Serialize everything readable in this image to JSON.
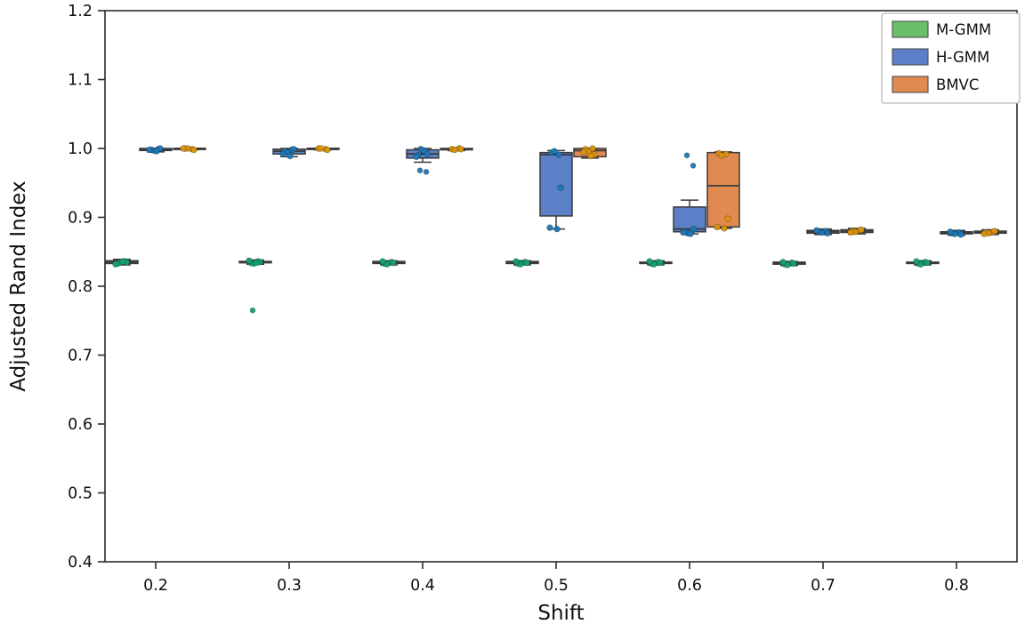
{
  "figure": {
    "title": "",
    "xlabel": "Shift",
    "ylabel": "Adjusted Rand Index"
  },
  "chart_data": {
    "type": "boxplot",
    "title": "",
    "xlabel": "Shift",
    "ylabel": "Adjusted Rand Index",
    "ylim": [
      0.4,
      1.2
    ],
    "yticks": [
      0.4,
      0.5,
      0.6,
      0.7,
      0.8,
      0.9,
      1.0,
      1.1,
      1.2
    ],
    "ytick_labels": [
      "0.4",
      "0.5",
      "0.6",
      "0.7",
      "0.8",
      "0.9",
      "1.0",
      "1.1",
      "1.2"
    ],
    "categories": [
      "0.2",
      "0.3",
      "0.4",
      "0.5",
      "0.6",
      "0.7",
      "0.8"
    ],
    "grid": false,
    "legend_position": "upper right",
    "frame": true,
    "edge_color": "#3a3a3a",
    "series": [
      {
        "name": "M-GMM",
        "box_color": "#6abf69",
        "point_color": "#16a06f",
        "boxes": [
          {
            "lo": 0.831,
            "q1": 0.833,
            "med": 0.835,
            "q3": 0.837,
            "hi": 0.839,
            "fliers": [],
            "points": [
              0.833,
              0.836,
              0.834,
              0.835,
              0.832,
              0.836
            ]
          },
          {
            "lo": 0.832,
            "q1": 0.834,
            "med": 0.835,
            "q3": 0.836,
            "hi": 0.838,
            "fliers": [
              0.765
            ],
            "points": [
              0.834,
              0.836,
              0.833,
              0.835,
              0.837,
              0.834
            ]
          },
          {
            "lo": 0.831,
            "q1": 0.833,
            "med": 0.834,
            "q3": 0.836,
            "hi": 0.837,
            "fliers": [],
            "points": [
              0.833,
              0.835,
              0.832,
              0.834,
              0.836
            ]
          },
          {
            "lo": 0.831,
            "q1": 0.833,
            "med": 0.834,
            "q3": 0.836,
            "hi": 0.837,
            "fliers": [],
            "points": [
              0.833,
              0.835,
              0.832,
              0.834,
              0.836
            ]
          },
          {
            "lo": 0.831,
            "q1": 0.833,
            "med": 0.834,
            "q3": 0.835,
            "hi": 0.837,
            "fliers": [],
            "points": [
              0.833,
              0.835,
              0.832,
              0.834,
              0.836
            ]
          },
          {
            "lo": 0.83,
            "q1": 0.832,
            "med": 0.833,
            "q3": 0.835,
            "hi": 0.836,
            "fliers": [],
            "points": [
              0.832,
              0.834,
              0.831,
              0.833,
              0.835
            ]
          },
          {
            "lo": 0.831,
            "q1": 0.833,
            "med": 0.834,
            "q3": 0.835,
            "hi": 0.837,
            "fliers": [],
            "points": [
              0.833,
              0.835,
              0.832,
              0.834,
              0.836
            ]
          }
        ]
      },
      {
        "name": "H-GMM",
        "box_color": "#5b80c7",
        "point_color": "#1f77b4",
        "boxes": [
          {
            "lo": 0.995,
            "q1": 0.997,
            "med": 0.998,
            "q3": 1.0,
            "hi": 1.0,
            "fliers": [],
            "points": [
              0.998,
              0.999,
              0.997,
              1.0,
              0.998,
              0.996
            ]
          },
          {
            "lo": 0.988,
            "q1": 0.992,
            "med": 0.996,
            "q3": 0.999,
            "hi": 1.0,
            "fliers": [],
            "points": [
              0.996,
              0.998,
              0.994,
              0.999,
              0.992,
              0.989
            ]
          },
          {
            "lo": 0.98,
            "q1": 0.986,
            "med": 0.992,
            "q3": 0.998,
            "hi": 1.0,
            "fliers": [
              0.968,
              0.966
            ],
            "points": [
              0.99,
              0.996,
              0.999,
              0.992,
              0.988,
              0.997
            ]
          },
          {
            "lo": 0.883,
            "q1": 0.902,
            "med": 0.991,
            "q3": 0.994,
            "hi": 0.997,
            "fliers": [],
            "points": [
              0.994,
              0.991,
              0.996,
              0.943,
              0.885,
              0.883
            ]
          },
          {
            "lo": 0.876,
            "q1": 0.879,
            "med": 0.883,
            "q3": 0.915,
            "hi": 0.925,
            "fliers": [
              0.99,
              0.975
            ],
            "points": [
              0.879,
              0.881,
              0.877,
              0.883,
              0.878,
              0.876
            ]
          },
          {
            "lo": 0.875,
            "q1": 0.877,
            "med": 0.879,
            "q3": 0.881,
            "hi": 0.883,
            "fliers": [],
            "points": [
              0.879,
              0.88,
              0.878,
              0.877,
              0.881
            ]
          },
          {
            "lo": 0.874,
            "q1": 0.876,
            "med": 0.877,
            "q3": 0.879,
            "hi": 0.881,
            "fliers": [],
            "points": [
              0.877,
              0.878,
              0.876,
              0.875,
              0.879
            ]
          }
        ]
      },
      {
        "name": "BMVC",
        "box_color": "#e08a52",
        "point_color": "#d9940e",
        "boxes": [
          {
            "lo": 0.998,
            "q1": 0.999,
            "med": 1.0,
            "q3": 1.0,
            "hi": 1.0,
            "fliers": [],
            "points": [
              1.0,
              0.999,
              1.0,
              0.998,
              1.0
            ]
          },
          {
            "lo": 0.998,
            "q1": 0.999,
            "med": 1.0,
            "q3": 1.0,
            "hi": 1.0,
            "fliers": [],
            "points": [
              1.0,
              0.999,
              1.0,
              0.998
            ]
          },
          {
            "lo": 0.997,
            "q1": 0.998,
            "med": 0.999,
            "q3": 1.0,
            "hi": 1.0,
            "fliers": [],
            "points": [
              0.999,
              1.0,
              0.998,
              0.999
            ]
          },
          {
            "lo": 0.986,
            "q1": 0.988,
            "med": 0.997,
            "q3": 1.0,
            "hi": 1.0,
            "fliers": [],
            "points": [
              0.999,
              1.0,
              0.996,
              0.991,
              0.995,
              0.989
            ]
          },
          {
            "lo": 0.884,
            "q1": 0.886,
            "med": 0.946,
            "q3": 0.994,
            "hi": 0.995,
            "fliers": [],
            "points": [
              0.993,
              0.992,
              0.99,
              0.898,
              0.886,
              0.884
            ]
          },
          {
            "lo": 0.876,
            "q1": 0.878,
            "med": 0.88,
            "q3": 0.882,
            "hi": 0.884,
            "fliers": [],
            "points": [
              0.88,
              0.881,
              0.879,
              0.882,
              0.878
            ]
          },
          {
            "lo": 0.875,
            "q1": 0.877,
            "med": 0.878,
            "q3": 0.88,
            "hi": 0.882,
            "fliers": [],
            "points": [
              0.878,
              0.879,
              0.877,
              0.88,
              0.876
            ]
          }
        ]
      }
    ]
  },
  "legend": {
    "items": [
      "M-GMM",
      "H-GMM",
      "BMVC"
    ]
  }
}
